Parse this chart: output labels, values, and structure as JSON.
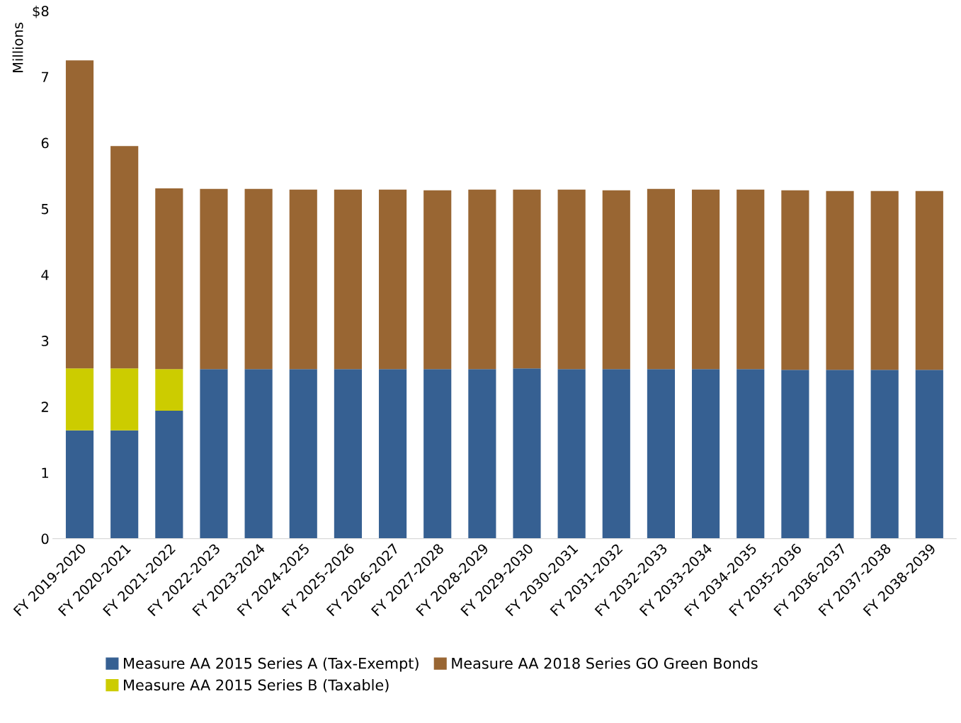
{
  "chart_data": {
    "type": "bar",
    "stacked": true,
    "ylabel": "Millions",
    "categories": [
      "FY 2019-2020",
      "FY 2020-2021",
      "FY 2021-2022",
      "FY 2022-2023",
      "FY 2023-2024",
      "FY 2024-2025",
      "FY 2025-2026",
      "FY 2026-2027",
      "FY 2027-2028",
      "FY 2028-2029",
      "FY 2029-2030",
      "FY 2030-2031",
      "FY 2031-2032",
      "FY 2032-2033",
      "FY 2033-2034",
      "FY 2034-2035",
      "FY 2035-2036",
      "FY 2036-2037",
      "FY 2037-2038",
      "FY 2038-2039"
    ],
    "series": [
      {
        "name": "Measure AA 2015 Series A (Tax-Exempt)",
        "color": "#366092",
        "values": [
          1.64,
          1.64,
          1.94,
          2.57,
          2.57,
          2.57,
          2.57,
          2.57,
          2.57,
          2.57,
          2.58,
          2.57,
          2.57,
          2.57,
          2.57,
          2.57,
          2.56,
          2.56,
          2.56,
          2.56
        ]
      },
      {
        "name": "Measure AA 2015 Series B (Taxable)",
        "color": "#cccc00",
        "values": [
          0.94,
          0.94,
          0.63,
          null,
          null,
          null,
          null,
          null,
          null,
          null,
          null,
          null,
          null,
          null,
          null,
          null,
          null,
          null,
          null,
          null
        ]
      },
      {
        "name": "Measure AA 2018 Series GO Green Bonds",
        "color": "#996633",
        "values": [
          4.67,
          3.37,
          2.74,
          2.73,
          2.73,
          2.72,
          2.72,
          2.72,
          2.71,
          2.72,
          2.71,
          2.72,
          2.71,
          2.73,
          2.72,
          2.72,
          2.72,
          2.71,
          2.71,
          2.71
        ]
      }
    ],
    "ylim": [
      0,
      8
    ],
    "yticks": [
      0,
      1,
      2,
      3,
      4,
      5,
      6,
      7,
      {
        "value": 8,
        "label": "$8"
      }
    ],
    "grid": false,
    "legend": "bottom"
  }
}
